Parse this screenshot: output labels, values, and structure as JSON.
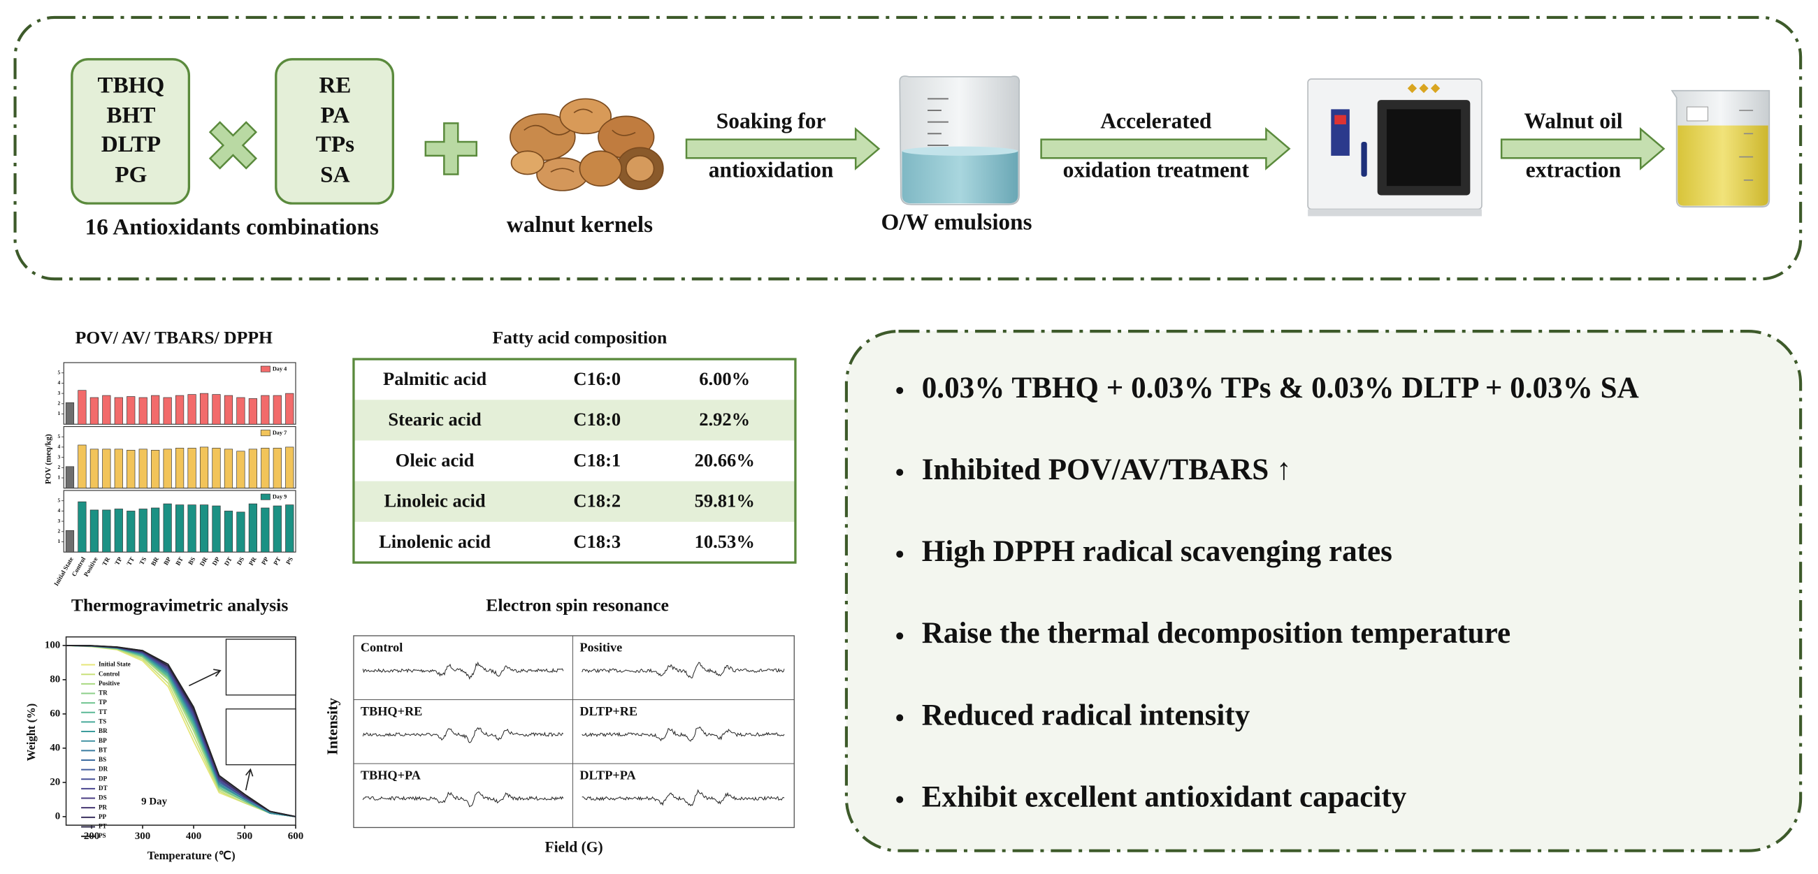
{
  "process": {
    "group_a": [
      "TBHQ",
      "BHT",
      "DLTP",
      "PG"
    ],
    "group_b": [
      "RE",
      "PA",
      "TPs",
      "SA"
    ],
    "combinations_label": "16 Antioxidants combinations",
    "kernels_label": "walnut kernels",
    "step1": [
      "Soaking for",
      "antioxidation"
    ],
    "emulsion_label": "O/W emulsions",
    "step2": [
      "Accelerated",
      "oxidation treatment"
    ],
    "step3": [
      "Walnut oil",
      "extraction"
    ]
  },
  "pov_chart": {
    "type": "bar",
    "title": "POV/ AV/ TBARS/ DPPH",
    "ylabel": "POV (meq/kg)",
    "categories": [
      "Initial State",
      "Control",
      "Positive",
      "TR",
      "TP",
      "TT",
      "TS",
      "BR",
      "BP",
      "BT",
      "BS",
      "DR",
      "DP",
      "DT",
      "DS",
      "PR",
      "PP",
      "PT",
      "PS"
    ],
    "ylim": [
      0,
      6
    ],
    "yticks": [
      1,
      2,
      3,
      4,
      5
    ],
    "first_bar_color": "#6e6e6e",
    "series": [
      {
        "name": "Day 4",
        "color": "#f26b6b",
        "values": [
          2.1,
          3.3,
          2.6,
          2.8,
          2.6,
          2.7,
          2.6,
          2.8,
          2.6,
          2.8,
          2.9,
          3.0,
          2.9,
          2.8,
          2.6,
          2.5,
          2.8,
          2.8,
          3.0
        ]
      },
      {
        "name": "Day 7",
        "color": "#f2c45a",
        "values": [
          2.1,
          4.2,
          3.8,
          3.8,
          3.8,
          3.7,
          3.8,
          3.7,
          3.8,
          3.9,
          3.9,
          4.0,
          3.9,
          3.8,
          3.6,
          3.8,
          3.9,
          3.9,
          4.0
        ]
      },
      {
        "name": "Day 9",
        "color": "#1c9184",
        "values": [
          2.1,
          4.9,
          4.1,
          4.1,
          4.2,
          4.0,
          4.2,
          4.3,
          4.7,
          4.6,
          4.6,
          4.6,
          4.5,
          4.0,
          3.9,
          4.7,
          4.3,
          4.5,
          4.6
        ]
      }
    ]
  },
  "fatty_acid_table": {
    "title": "Fatty acid composition",
    "rows": [
      [
        "Palmitic acid",
        "C16:0",
        "6.00%"
      ],
      [
        "Stearic acid",
        "C18:0",
        "2.92%"
      ],
      [
        "Oleic acid",
        "C18:1",
        "20.66%"
      ],
      [
        "Linoleic acid",
        "C18:2",
        "59.81%"
      ],
      [
        "Linolenic acid",
        "C18:3",
        "10.53%"
      ]
    ]
  },
  "tga_chart": {
    "type": "line",
    "title": "Thermogravimetric analysis",
    "xlabel": "Temperature (℃)",
    "ylabel": "Weight (%)",
    "annotation": "9 Day",
    "x": [
      150,
      200,
      250,
      300,
      350,
      400,
      450,
      500,
      550,
      600
    ],
    "xlim": [
      150,
      600
    ],
    "xticks": [
      200,
      300,
      400,
      500,
      600
    ],
    "ylim": [
      -5,
      105
    ],
    "yticks": [
      0,
      20,
      40,
      60,
      80,
      100
    ],
    "series": [
      {
        "name": "Initial State",
        "color": "#e6e67a",
        "values": [
          100,
          99.3,
          97.5,
          91,
          76,
          44,
          14,
          8,
          2,
          0
        ]
      },
      {
        "name": "Control",
        "color": "#c8e07a",
        "values": [
          100,
          99.4,
          97.8,
          92,
          78,
          47,
          15,
          8,
          2,
          0
        ]
      },
      {
        "name": "Positive",
        "color": "#a8d880",
        "values": [
          100,
          99.5,
          98,
          93,
          80,
          50,
          16,
          9,
          2,
          0
        ]
      },
      {
        "name": "TR",
        "color": "#8ccf88",
        "values": [
          100,
          99.5,
          98.2,
          93.5,
          81,
          52,
          17,
          9,
          2,
          0
        ]
      },
      {
        "name": "TP",
        "color": "#70c490",
        "values": [
          100,
          99.6,
          98.3,
          94,
          82,
          53,
          17,
          9,
          2,
          0
        ]
      },
      {
        "name": "TT",
        "color": "#5ab896",
        "values": [
          100,
          99.6,
          98.4,
          94,
          82,
          54,
          18,
          10,
          2,
          0
        ]
      },
      {
        "name": "TS",
        "color": "#48aa9a",
        "values": [
          100,
          99.6,
          98.5,
          94.5,
          83,
          55,
          18,
          10,
          2,
          0
        ]
      },
      {
        "name": "BR",
        "color": "#3c9c9c",
        "values": [
          100,
          99.7,
          98.6,
          95,
          84,
          56,
          19,
          10,
          2,
          0
        ]
      },
      {
        "name": "BP",
        "color": "#388c9e",
        "values": [
          100,
          99.7,
          98.6,
          95,
          84,
          57,
          19,
          10,
          2,
          0
        ]
      },
      {
        "name": "BT",
        "color": "#3a7ca0",
        "values": [
          100,
          99.7,
          98.7,
          95.5,
          85,
          58,
          20,
          11,
          3,
          0
        ]
      },
      {
        "name": "BS",
        "color": "#3d6ca0",
        "values": [
          100,
          99.7,
          98.7,
          95.5,
          85,
          58,
          20,
          11,
          3,
          0
        ]
      },
      {
        "name": "DR",
        "color": "#405c9c",
        "values": [
          100,
          99.8,
          98.8,
          96,
          86,
          59,
          21,
          11,
          3,
          0
        ]
      },
      {
        "name": "DP",
        "color": "#444e96",
        "values": [
          100,
          99.8,
          98.8,
          96,
          86,
          60,
          21,
          11,
          3,
          0
        ]
      },
      {
        "name": "DT",
        "color": "#48448e",
        "values": [
          100,
          99.8,
          98.9,
          96,
          87,
          61,
          22,
          12,
          3,
          0
        ]
      },
      {
        "name": "DS",
        "color": "#4a3c82",
        "values": [
          100,
          99.8,
          98.9,
          96.5,
          87,
          61,
          22,
          12,
          3,
          0
        ]
      },
      {
        "name": "PR",
        "color": "#443670",
        "values": [
          100,
          99.8,
          99,
          96.5,
          88,
          62,
          23,
          12,
          3,
          0
        ]
      },
      {
        "name": "PP",
        "color": "#3a305e",
        "values": [
          100,
          99.8,
          99,
          96.5,
          88,
          62,
          23,
          12,
          3,
          0
        ]
      },
      {
        "name": "PT",
        "color": "#2e2a4a",
        "values": [
          100,
          99.9,
          99,
          97,
          88,
          63,
          24,
          13,
          3,
          0
        ]
      },
      {
        "name": "PS",
        "color": "#222222",
        "values": [
          100,
          99.9,
          99.1,
          97,
          89,
          64,
          24,
          13,
          3,
          0
        ]
      }
    ]
  },
  "esr": {
    "title": "Electron spin resonance",
    "ylabel": "Intensity",
    "xlabel": "Field (G)",
    "panels": [
      "Control",
      "Positive",
      "TBHQ+RE",
      "DLTP+RE",
      "TBHQ+PA",
      "DLTP+PA"
    ]
  },
  "findings": [
    "0.03% TBHQ + 0.03% TPs & 0.03% DLTP + 0.03% SA",
    "Inhibited POV/AV/TBARS ↑",
    "High DPPH radical scavenging rates",
    "Raise the thermal decomposition temperature",
    "Reduced radical intensity",
    "Exhibit excellent antioxidant capacity"
  ]
}
